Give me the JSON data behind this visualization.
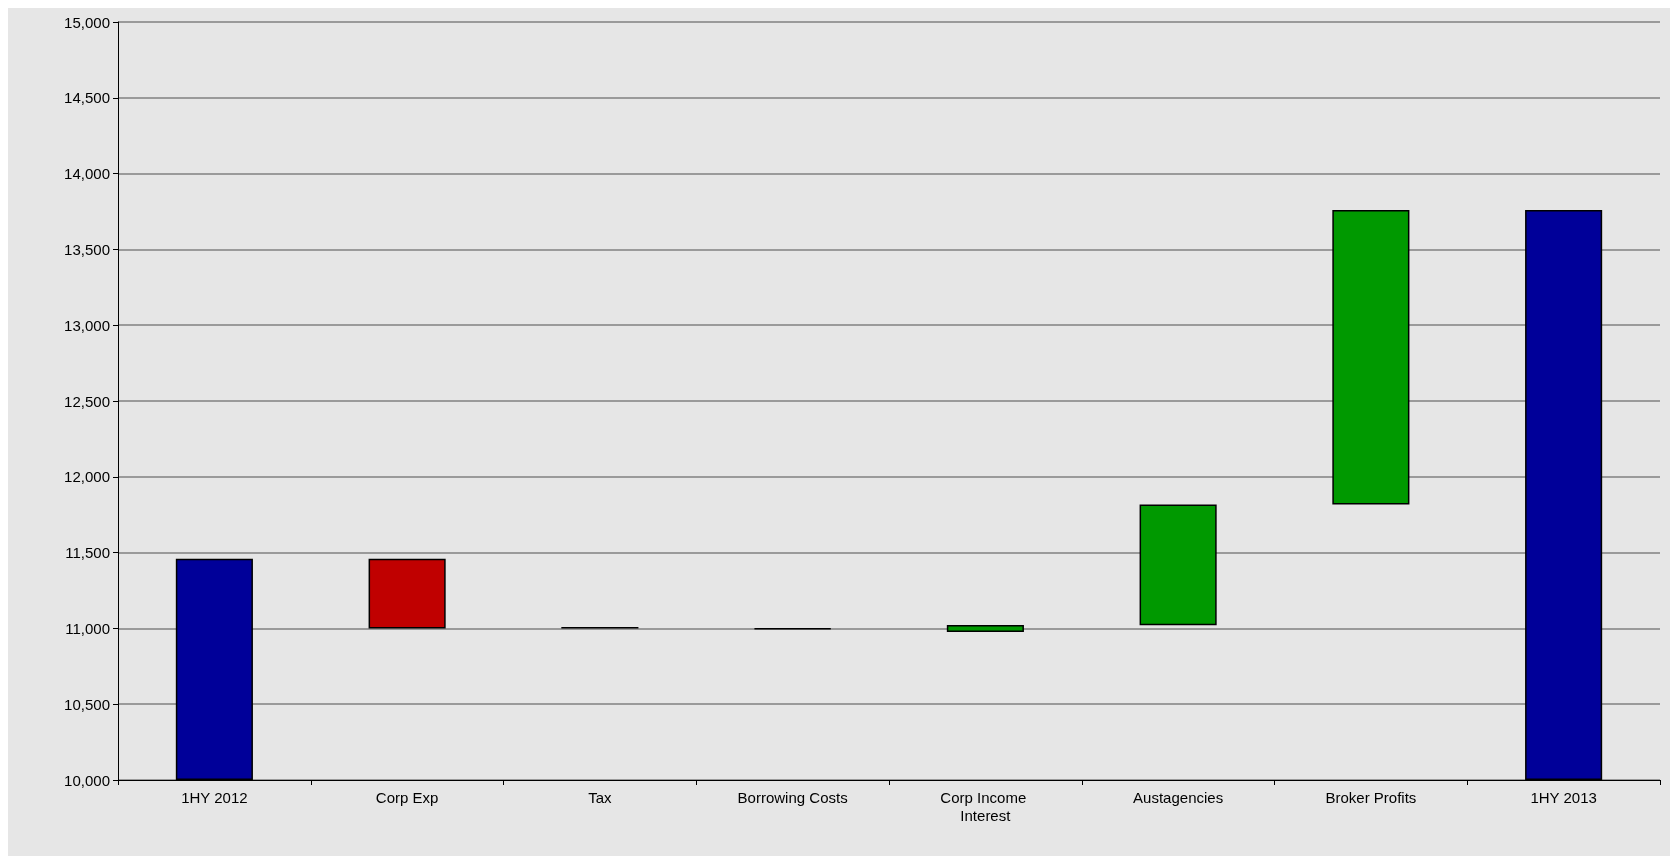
{
  "chart_data": {
    "type": "bar",
    "categories": [
      "1HY 2012",
      "Corp Exp",
      "Tax",
      "Borrowing Costs",
      "Corp Income Interest",
      "Austagencies",
      "Broker Profits",
      "1HY 2013"
    ],
    "base": [
      10000,
      11000,
      11000,
      10995,
      10977,
      11020,
      11818,
      10000
    ],
    "values": [
      1460,
      460,
      10,
      5,
      46,
      798,
      1942,
      3760
    ],
    "colors": [
      "#000099",
      "#c00000",
      "#000000",
      "#000000",
      "#009900",
      "#009900",
      "#009900",
      "#000099"
    ],
    "ylim": [
      10000,
      15000
    ],
    "yticks": [
      {
        "value": 10000,
        "label": "10,000"
      },
      {
        "value": 10500,
        "label": "10,500"
      },
      {
        "value": 11000,
        "label": "11,000"
      },
      {
        "value": 11500,
        "label": "11,500"
      },
      {
        "value": 12000,
        "label": "12,000"
      },
      {
        "value": 12500,
        "label": "12,500"
      },
      {
        "value": 13000,
        "label": "13,000"
      },
      {
        "value": 13500,
        "label": "13,500"
      },
      {
        "value": 14000,
        "label": "14,000"
      },
      {
        "value": 14500,
        "label": "14,500"
      },
      {
        "value": 15000,
        "label": "15,000"
      }
    ],
    "grid": "y"
  }
}
